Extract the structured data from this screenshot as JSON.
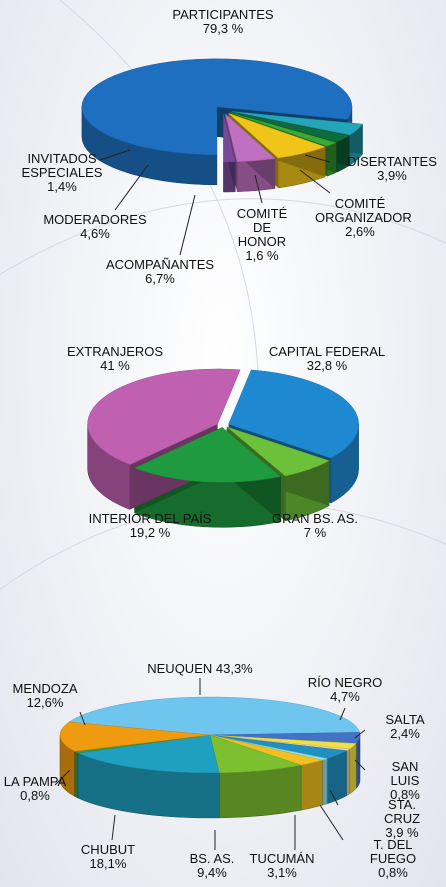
{
  "chart_data": [
    {
      "type": "pie",
      "categories": [
        "PARTICIPANTES",
        "DISERTANTES",
        "COMITÉ ORGANIZADOR",
        "COMITÉ DE HONOR",
        "ACOMPAÑANTES",
        "MODERADORES",
        "INVITADOS ESPECIALES"
      ],
      "values": [
        79.3,
        3.9,
        2.6,
        1.6,
        6.7,
        4.6,
        1.4
      ],
      "value_labels": [
        "79,3 %",
        "3,9%",
        "2,6%",
        "1,6 %",
        "6,7%",
        "4,6%",
        "1,4%"
      ],
      "colors": [
        "#1f6fc0",
        "#22a6b8",
        "#0e6b3c",
        "#3aaa35",
        "#f0c419",
        "#c070c0",
        "#7a4a9a"
      ]
    },
    {
      "type": "pie",
      "categories": [
        "CAPITAL FEDERAL",
        "GRAN BS. AS.",
        "INTERIOR DEL PAÍS",
        "EXTRANJEROS"
      ],
      "values": [
        32.8,
        7,
        19.2,
        41
      ],
      "value_labels": [
        "32,8 %",
        "7 %",
        "19,2 %",
        "41 %"
      ],
      "colors": [
        "#1e88d0",
        "#6cc03a",
        "#1f9a3f",
        "#c060b0"
      ]
    },
    {
      "type": "pie",
      "categories": [
        "NEUQUEN",
        "RÍO NEGRO",
        "SALTA",
        "SAN LUIS",
        "STA. CRUZ",
        "T. DEL FUEGO",
        "TUCUMÁN",
        "BS. AS.",
        "CHUBUT",
        "LA PAMPA",
        "MENDOZA"
      ],
      "values": [
        43.3,
        4.7,
        2.4,
        0.8,
        3.9,
        0.8,
        3.1,
        9.4,
        18.1,
        0.8,
        12.6
      ],
      "value_labels": [
        "43,3%",
        "4,7%",
        "2,4%",
        "0,8%",
        "3,9 %",
        "0,8%",
        "3,1%",
        "9,4%",
        "18,1%",
        "0,8%",
        "12,6%"
      ],
      "colors": [
        "#6ec6ee",
        "#4472c4",
        "#f0e040",
        "#e8d0a0",
        "#2090c0",
        "#90e0f0",
        "#f0c020",
        "#7cc030",
        "#20a0c0",
        "#3a9a40",
        "#f09a10"
      ]
    }
  ]
}
